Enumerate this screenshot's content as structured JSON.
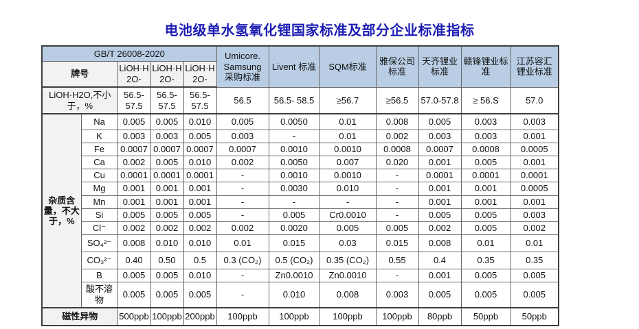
{
  "title": "电池级单水氢氧化锂国家标准及部分企业标准指标",
  "colors": {
    "title": "#1c1cb4",
    "header_bg": "#b9cde4",
    "label_bg": "#f2f2f2",
    "border": "#666666"
  },
  "table": {
    "gb_header": "GB/T 26008-2020",
    "brand_label": "牌号",
    "gb_subcols": [
      "LiOH·H2O-",
      "LiOH·H2O-",
      "LiOH·H2O-"
    ],
    "company_headers": [
      "Umicore. Samsung 采购标准",
      "Livent 标准",
      "SQM标准",
      "雅保公司标准",
      "天齐锂业标准",
      "赣锋锂业标准",
      "江苏容汇锂业标准"
    ],
    "lioh_row": {
      "label": "LiOH·H2O,不小于，%",
      "values": [
        "56.5-57.5",
        "56.5-57.5",
        "56.5-57.5",
        "56.5",
        "56.5- 58.5",
        "≥56.7",
        "≥56.5",
        "57.0-57.8",
        "≥ 56.S",
        "57.0"
      ]
    },
    "impurity_label": "杂质含量，不大于，%",
    "impurity_rows": [
      {
        "element": "Na",
        "values": [
          "0.005",
          "0.005",
          "0.010",
          "0.005",
          "0.0050",
          "0.01",
          "0.008",
          "0.005",
          "0.003",
          "0.003"
        ]
      },
      {
        "element": "K",
        "values": [
          "0.003",
          "0.003",
          "0.005",
          "0.003",
          "-",
          "0.01",
          "0.002",
          "0.003",
          "0.003",
          "0.001"
        ]
      },
      {
        "element": "Fe",
        "values": [
          "0.0007",
          "0.0007",
          "0.0007",
          "0.0007",
          "0.0010",
          "0.0010",
          "0.0008",
          "0.0007",
          "0.0008",
          "0.0005"
        ]
      },
      {
        "element": "Ca",
        "values": [
          "0.002",
          "0.005",
          "0.010",
          "0.002",
          "0.0050",
          "0.007",
          "0.020",
          "0.001",
          "0.005",
          "0.001"
        ]
      },
      {
        "element": "Cu",
        "values": [
          "0.0001",
          "0.0001",
          "0.0001",
          "-",
          "0.0010",
          "0.0010",
          "-",
          "0.0001",
          "0.0001",
          "0.0001"
        ]
      },
      {
        "element": "Mg",
        "values": [
          "0.001",
          "0.001",
          "0.001",
          "-",
          "0.0030",
          "0.010",
          "-",
          "0.001",
          "0.001",
          "0.0005"
        ]
      },
      {
        "element": "Mn",
        "values": [
          "0.001",
          "0.001",
          "0.001",
          "-",
          "-",
          "-",
          "-",
          "0.001",
          "0.001",
          "0.001"
        ]
      },
      {
        "element": "Si",
        "values": [
          "0.005",
          "0.005",
          "0.005",
          "-",
          "0.005",
          "Cr0.0010",
          "-",
          "0.005",
          "0.005",
          "0.003"
        ]
      },
      {
        "element": "Cl⁻",
        "values": [
          "0.002",
          "0.002",
          "0.002",
          "0.002",
          "0.0020",
          "0.005",
          "0.005",
          "0.002",
          "0.005",
          "0.002"
        ]
      },
      {
        "element": "SO₄²⁻",
        "values": [
          "0.008",
          "0.010",
          "0.010",
          "0.01",
          "0.015",
          "0.03",
          "0.015",
          "0.008",
          "0.01",
          "0.01"
        ]
      },
      {
        "element": "CO₃²⁻",
        "values": [
          "0.40",
          "0.50",
          "0.5",
          "0.3 (CO₂)",
          "0.5  (CO₂)",
          "0.35  (CO₂)",
          "0.55",
          "0.4",
          "0.35",
          "0.35"
        ]
      },
      {
        "element": "B",
        "values": [
          "0.005",
          "0.005",
          "0.010",
          "-",
          "Zn0.0010",
          "Zn0.0010",
          "-",
          "0.001",
          "0.005",
          "0.005"
        ]
      },
      {
        "element": "酸不溶物",
        "values": [
          "0.005",
          "0.005",
          "0.005",
          "-",
          "0.010",
          "0.008",
          "0.003",
          "0.005",
          "0.005",
          "0.005"
        ]
      }
    ],
    "magnetic_row": {
      "label": "磁性异物",
      "values": [
        "500ppb",
        "100ppb",
        "200ppb",
        "100ppb",
        "100ppb",
        "100ppb",
        "100ppb",
        "80ppb",
        "50ppb",
        "50ppb"
      ]
    }
  }
}
